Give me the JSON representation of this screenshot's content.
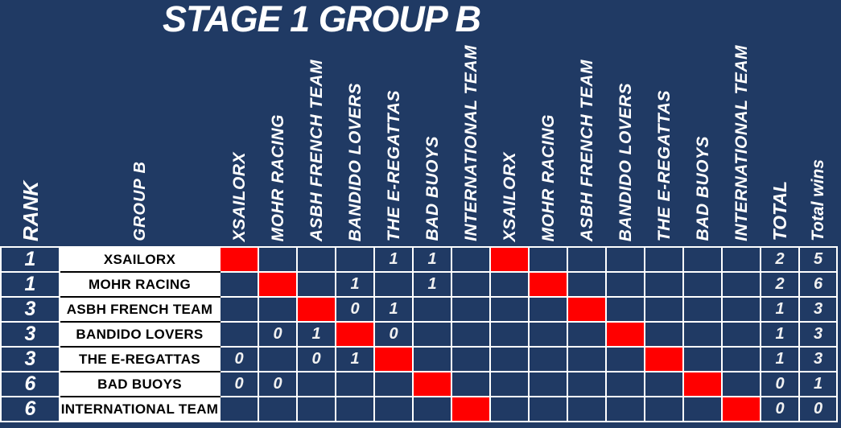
{
  "title": "STAGE 1 GROUP B",
  "colors": {
    "background_navy": "#203A64",
    "diagonal_red": "#FF0000",
    "grid_white": "#FFFFFF",
    "name_text_black": "#000000"
  },
  "table": {
    "rank_header": "RANK",
    "group_header": "GROUP B",
    "opponent_headers": [
      "XSAILORX",
      "MOHR RACING",
      "ASBH FRENCH TEAM",
      "BANDIDO LOVERS",
      "THE E-REGATTAS",
      "BAD BUOYS",
      "INTERNATIONAL TEAM",
      "XSAILORX",
      "MOHR RACING",
      "ASBH FRENCH TEAM",
      "BANDIDO LOVERS",
      "THE E-REGATTAS",
      "BAD BUOYS",
      "INTERNATIONAL TEAM"
    ],
    "total_header": "TOTAL",
    "total_wins_header": "Total wins",
    "red_marker": "X",
    "rows": [
      {
        "rank": "1",
        "team": "XSAILORX",
        "results": [
          "X",
          "",
          "",
          "",
          "1",
          "1",
          "",
          "X",
          "",
          "",
          "",
          "",
          "",
          ""
        ],
        "total": "2",
        "total_wins": "5"
      },
      {
        "rank": "1",
        "team": "MOHR RACING",
        "results": [
          "",
          "X",
          "",
          "1",
          "",
          "1",
          "",
          "",
          "X",
          "",
          "",
          "",
          "",
          ""
        ],
        "total": "2",
        "total_wins": "6"
      },
      {
        "rank": "3",
        "team": "ASBH FRENCH TEAM",
        "results": [
          "",
          "",
          "X",
          "0",
          "1",
          "",
          "",
          "",
          "",
          "X",
          "",
          "",
          "",
          ""
        ],
        "total": "1",
        "total_wins": "3"
      },
      {
        "rank": "3",
        "team": "BANDIDO LOVERS",
        "results": [
          "",
          "0",
          "1",
          "X",
          "0",
          "",
          "",
          "",
          "",
          "",
          "X",
          "",
          "",
          ""
        ],
        "total": "1",
        "total_wins": "3"
      },
      {
        "rank": "3",
        "team": "THE E-REGATTAS",
        "results": [
          "0",
          "",
          "0",
          "1",
          "X",
          "",
          "",
          "",
          "",
          "",
          "",
          "X",
          "",
          ""
        ],
        "total": "1",
        "total_wins": "3"
      },
      {
        "rank": "6",
        "team": "BAD BUOYS",
        "results": [
          "0",
          "0",
          "",
          "",
          "",
          "X",
          "",
          "",
          "",
          "",
          "",
          "",
          "X",
          ""
        ],
        "total": "0",
        "total_wins": "1"
      },
      {
        "rank": "6",
        "team": "INTERNATIONAL TEAM",
        "results": [
          "",
          "",
          "",
          "",
          "",
          "",
          "X",
          "",
          "",
          "",
          "",
          "",
          "",
          "X"
        ],
        "total": "0",
        "total_wins": "0"
      }
    ]
  }
}
